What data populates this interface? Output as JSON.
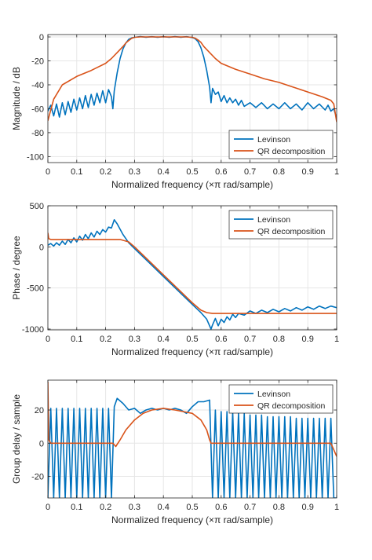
{
  "chart_data": [
    {
      "type": "line",
      "xlabel": "Normalized frequency (×π rad/sample)",
      "ylabel": "Magnitude / dB",
      "xlim": [
        0,
        1
      ],
      "ylim": [
        -105,
        2
      ],
      "xticks": [
        0,
        0.1,
        0.2,
        0.3,
        0.4,
        0.5,
        0.6,
        0.7,
        0.8,
        0.9,
        1
      ],
      "xtick_labels": [
        "0",
        "0.1",
        "0.2",
        "0.3",
        "0.4",
        "0.5",
        "0.6",
        "0.7",
        "0.8",
        "0.9",
        "1"
      ],
      "yticks": [
        0,
        -20,
        -40,
        -60,
        -80,
        -100
      ],
      "ytick_labels": [
        "0",
        "-20",
        "-40",
        "-60",
        "-80",
        "-100"
      ],
      "grid": true,
      "legend_position": "bottom-right",
      "series": [
        {
          "name": "Levinson",
          "color": "#0072BD",
          "x": [
            0,
            0.01,
            0.02,
            0.03,
            0.04,
            0.05,
            0.06,
            0.07,
            0.08,
            0.09,
            0.1,
            0.11,
            0.12,
            0.13,
            0.14,
            0.15,
            0.16,
            0.17,
            0.18,
            0.19,
            0.2,
            0.21,
            0.22,
            0.225,
            0.23,
            0.24,
            0.25,
            0.26,
            0.27,
            0.28,
            0.29,
            0.3,
            0.32,
            0.34,
            0.36,
            0.38,
            0.4,
            0.42,
            0.44,
            0.46,
            0.48,
            0.5,
            0.51,
            0.52,
            0.53,
            0.54,
            0.55,
            0.56,
            0.565,
            0.57,
            0.58,
            0.59,
            0.6,
            0.61,
            0.62,
            0.63,
            0.64,
            0.65,
            0.66,
            0.67,
            0.68,
            0.7,
            0.72,
            0.74,
            0.76,
            0.78,
            0.8,
            0.82,
            0.84,
            0.86,
            0.88,
            0.9,
            0.92,
            0.94,
            0.96,
            0.97,
            0.98,
            0.99,
            1
          ],
          "y": [
            -62,
            -57,
            -66,
            -56,
            -67,
            -55,
            -65,
            -54,
            -63,
            -52,
            -61,
            -51,
            -60,
            -49,
            -59,
            -48,
            -57,
            -47,
            -55,
            -45,
            -55,
            -44,
            -50,
            -60,
            -45,
            -30,
            -18,
            -10,
            -5,
            -2,
            -0.8,
            -0.3,
            0.3,
            -0.2,
            0.2,
            -0.3,
            0.2,
            -0.3,
            0.3,
            -0.2,
            0.2,
            -0.5,
            -1.5,
            -4,
            -9,
            -17,
            -28,
            -42,
            -55,
            -43,
            -48,
            -46,
            -54,
            -49,
            -55,
            -51,
            -55,
            -52,
            -57,
            -53,
            -58,
            -55,
            -59,
            -55,
            -60,
            -56,
            -60,
            -55,
            -60,
            -56,
            -61,
            -55,
            -60,
            -56,
            -61,
            -57,
            -62,
            -60,
            -68
          ]
        },
        {
          "name": "QR decomposition",
          "color": "#D95319",
          "x": [
            0,
            0.02,
            0.05,
            0.1,
            0.15,
            0.2,
            0.22,
            0.24,
            0.26,
            0.27,
            0.28,
            0.29,
            0.3,
            0.32,
            0.35,
            0.4,
            0.45,
            0.48,
            0.5,
            0.51,
            0.52,
            0.53,
            0.54,
            0.56,
            0.58,
            0.6,
            0.65,
            0.7,
            0.75,
            0.8,
            0.85,
            0.9,
            0.95,
            0.98,
            0.99,
            1
          ],
          "y": [
            -70,
            -52,
            -40,
            -33,
            -28,
            -22,
            -18,
            -13,
            -8,
            -5,
            -3,
            -1.2,
            -0.3,
            0,
            0,
            0,
            0,
            0,
            -0.3,
            -1,
            -2.5,
            -4.5,
            -8,
            -13,
            -18,
            -22,
            -27,
            -31,
            -35,
            -38,
            -42,
            -46,
            -50,
            -53,
            -56,
            -71
          ]
        }
      ]
    },
    {
      "type": "line",
      "xlabel": "Normalized frequency (×π rad/sample)",
      "ylabel": "Phase / degree",
      "xlim": [
        0,
        1
      ],
      "ylim": [
        -1010,
        500
      ],
      "xticks": [
        0,
        0.1,
        0.2,
        0.3,
        0.4,
        0.5,
        0.6,
        0.7,
        0.8,
        0.9,
        1
      ],
      "xtick_labels": [
        "0",
        "0.1",
        "0.2",
        "0.3",
        "0.4",
        "0.5",
        "0.6",
        "0.7",
        "0.8",
        "0.9",
        "1"
      ],
      "yticks": [
        500,
        0,
        -500,
        -1000
      ],
      "ytick_labels": [
        "500",
        "0",
        "-500",
        "-1000"
      ],
      "grid": true,
      "legend_position": "top-right",
      "series": [
        {
          "name": "Levinson",
          "color": "#0072BD",
          "x": [
            0,
            0.01,
            0.02,
            0.03,
            0.04,
            0.05,
            0.06,
            0.07,
            0.08,
            0.09,
            0.1,
            0.11,
            0.12,
            0.13,
            0.14,
            0.15,
            0.16,
            0.17,
            0.18,
            0.19,
            0.2,
            0.21,
            0.22,
            0.23,
            0.24,
            0.26,
            0.28,
            0.3,
            0.35,
            0.4,
            0.45,
            0.5,
            0.53,
            0.55,
            0.565,
            0.57,
            0.58,
            0.59,
            0.6,
            0.61,
            0.62,
            0.63,
            0.64,
            0.65,
            0.66,
            0.68,
            0.7,
            0.72,
            0.74,
            0.76,
            0.78,
            0.8,
            0.82,
            0.84,
            0.86,
            0.88,
            0.9,
            0.92,
            0.94,
            0.96,
            0.98,
            1
          ],
          "y": [
            20,
            40,
            10,
            50,
            20,
            70,
            30,
            90,
            50,
            110,
            60,
            130,
            80,
            150,
            100,
            170,
            120,
            190,
            150,
            210,
            180,
            240,
            230,
            330,
            280,
            150,
            50,
            -20,
            -190,
            -360,
            -530,
            -700,
            -800,
            -880,
            -1000,
            -950,
            -870,
            -960,
            -880,
            -920,
            -850,
            -890,
            -820,
            -860,
            -810,
            -830,
            -780,
            -810,
            -770,
            -800,
            -760,
            -790,
            -750,
            -780,
            -740,
            -770,
            -730,
            -760,
            -720,
            -750,
            -720,
            -740
          ]
        },
        {
          "name": "QR decomposition",
          "color": "#D95319",
          "x": [
            0,
            0.003,
            0.01,
            0.05,
            0.1,
            0.15,
            0.2,
            0.25,
            0.28,
            0.3,
            0.35,
            0.4,
            0.45,
            0.5,
            0.53,
            0.55,
            0.57,
            0.6,
            0.7,
            0.8,
            0.9,
            1
          ],
          "y": [
            170,
            100,
            90,
            90,
            90,
            90,
            90,
            90,
            60,
            0,
            -170,
            -340,
            -510,
            -680,
            -770,
            -800,
            -810,
            -810,
            -810,
            -810,
            -810,
            -810
          ]
        }
      ]
    },
    {
      "type": "line",
      "xlabel": "Normalized frequency (×π rad/sample)",
      "ylabel": "Group delay / sample",
      "xlim": [
        0,
        1
      ],
      "ylim": [
        -33,
        38
      ],
      "xticks": [
        0,
        0.1,
        0.2,
        0.3,
        0.4,
        0.5,
        0.6,
        0.7,
        0.8,
        0.9,
        1
      ],
      "xtick_labels": [
        "0",
        "0.1",
        "0.2",
        "0.3",
        "0.4",
        "0.5",
        "0.6",
        "0.7",
        "0.8",
        "0.9",
        "1"
      ],
      "yticks": [
        20,
        0,
        -20
      ],
      "ytick_labels": [
        "20",
        "0",
        "-20"
      ],
      "grid": true,
      "legend_position": "top-right",
      "series": [
        {
          "name": "Levinson",
          "color": "#0072BD",
          "x": [
            0,
            0.01,
            0.02,
            0.03,
            0.04,
            0.05,
            0.06,
            0.07,
            0.08,
            0.09,
            0.1,
            0.11,
            0.12,
            0.13,
            0.14,
            0.15,
            0.16,
            0.17,
            0.18,
            0.19,
            0.2,
            0.21,
            0.22,
            0.23,
            0.24,
            0.26,
            0.28,
            0.3,
            0.32,
            0.34,
            0.36,
            0.38,
            0.4,
            0.42,
            0.44,
            0.46,
            0.48,
            0.5,
            0.52,
            0.54,
            0.56,
            0.57,
            0.58,
            0.59,
            0.6,
            0.61,
            0.62,
            0.63,
            0.64,
            0.65,
            0.66,
            0.67,
            0.68,
            0.69,
            0.7,
            0.71,
            0.72,
            0.73,
            0.74,
            0.75,
            0.76,
            0.77,
            0.78,
            0.79,
            0.8,
            0.81,
            0.82,
            0.83,
            0.84,
            0.85,
            0.86,
            0.87,
            0.88,
            0.89,
            0.9,
            0.91,
            0.92,
            0.93,
            0.94,
            0.95,
            0.96,
            0.97,
            0.98,
            0.99,
            1
          ],
          "y": [
            -33,
            21,
            -33,
            21,
            -33,
            21,
            -33,
            21,
            -33,
            21,
            -33,
            21,
            -33,
            21,
            -33,
            21,
            -33,
            21,
            -33,
            21,
            -33,
            21,
            -33,
            22,
            27,
            24,
            20,
            21,
            18,
            20,
            21,
            20,
            21,
            20,
            21,
            20,
            18,
            22,
            25,
            25,
            26,
            -33,
            20,
            -33,
            19,
            -33,
            19,
            -33,
            19,
            -33,
            18,
            -33,
            18,
            -33,
            17,
            -33,
            17,
            -33,
            17,
            -33,
            16,
            -33,
            16,
            -33,
            16,
            -33,
            16,
            -33,
            16,
            -33,
            15,
            -33,
            15,
            -33,
            15,
            -33,
            15,
            -33,
            15,
            -33,
            15,
            -33,
            15,
            -33,
            -33
          ]
        },
        {
          "name": "QR decomposition",
          "color": "#D95319",
          "x": [
            0,
            0.003,
            0.01,
            0.1,
            0.2,
            0.225,
            0.235,
            0.25,
            0.27,
            0.3,
            0.33,
            0.36,
            0.4,
            0.44,
            0.47,
            0.5,
            0.53,
            0.55,
            0.56,
            0.565,
            0.6,
            0.7,
            0.8,
            0.9,
            0.98,
            0.995,
            1
          ],
          "y": [
            37,
            2,
            0,
            0,
            0,
            0,
            -2,
            2,
            8,
            14,
            18,
            20,
            21,
            20,
            19,
            18,
            14,
            8,
            2,
            0,
            0,
            0,
            0,
            0,
            0,
            -6,
            -8
          ]
        }
      ]
    }
  ]
}
